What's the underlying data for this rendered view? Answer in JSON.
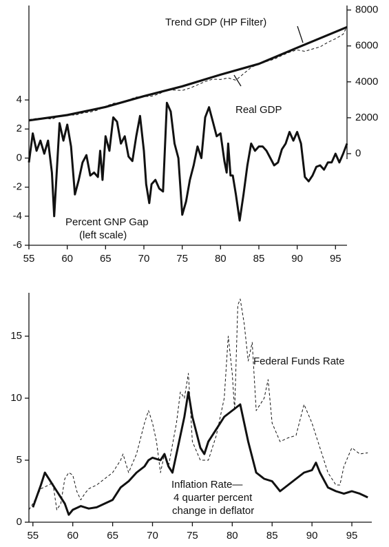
{
  "chart_data": [
    {
      "type": "line",
      "xlim": [
        55,
        96.5
      ],
      "xticks": [
        55,
        60,
        65,
        70,
        75,
        80,
        85,
        90,
        95
      ],
      "ylim": [
        -6,
        10.5
      ],
      "yticks": [
        -6,
        -4,
        -2,
        0,
        2,
        4
      ],
      "y2lim": [
        -5100,
        8250
      ],
      "y2ticks": [
        0,
        2000,
        4000,
        6000,
        8000
      ],
      "annotations": [
        "Trend GDP (HP Filter)",
        "Real GDP",
        "Percent GNP Gap",
        "(left scale)"
      ],
      "series": [
        {
          "color": "#111111",
          "style": "solid",
          "width": 3,
          "axis": "y",
          "x": [
            55,
            55.5,
            56,
            56.5,
            57,
            57.5,
            58,
            58.3,
            59,
            59.5,
            60,
            60.5,
            61,
            61.5,
            62,
            62.5,
            63,
            63.5,
            64,
            64.3,
            64.6,
            65,
            65.5,
            66,
            66.5,
            67,
            67.5,
            68,
            68.5,
            69,
            69.5,
            70,
            70.3,
            70.7,
            71,
            71.5,
            72,
            72.5,
            73,
            73.5,
            74,
            74.5,
            75,
            75.5,
            76,
            76.5,
            77,
            77.5,
            78,
            78.5,
            79,
            79.5,
            80,
            80.5,
            80.8,
            81,
            81.3,
            81.6,
            82,
            82.5,
            83,
            83.5,
            84,
            84.5,
            85,
            85.5,
            86,
            86.5,
            87,
            87.5,
            88,
            88.5,
            89,
            89.5,
            90,
            90.5,
            91,
            91.5,
            92,
            92.5,
            93,
            93.5,
            94,
            94.5,
            95,
            95.5,
            96,
            96.5
          ],
          "values": [
            -0.3,
            1.7,
            0.5,
            1.2,
            0.3,
            1.2,
            -1,
            -4,
            2.4,
            1.2,
            2.3,
            0.8,
            -2.5,
            -1.5,
            -0.3,
            0.2,
            -1.2,
            -1,
            -1.3,
            0.5,
            -1.5,
            1.5,
            0.5,
            2.8,
            2.5,
            1,
            1.5,
            0.1,
            -0.2,
            1.5,
            2.9,
            0.5,
            -1.8,
            -3.1,
            -1.8,
            -1.5,
            -2.1,
            -2.3,
            3.8,
            3.2,
            1,
            0,
            -3.9,
            -3,
            -1.5,
            -0.5,
            0.8,
            0,
            2.8,
            3.5,
            2.5,
            1.5,
            1.7,
            -0.2,
            -1,
            1,
            -1.2,
            -1.2,
            -2.5,
            -4.3,
            -2.5,
            -0.5,
            1,
            0.5,
            0.8,
            0.8,
            0.5,
            0,
            -0.5,
            -0.3,
            0.6,
            1,
            1.8,
            1.2,
            1.8,
            1,
            -1.3,
            -1.6,
            -1.2,
            -0.6,
            -0.5,
            -0.8,
            -0.3,
            -0.3,
            0.3,
            -0.3,
            0.3,
            1
          ]
        },
        {
          "color": "#111111",
          "style": "solid",
          "width": 3.2,
          "axis": "y2",
          "x": [
            55,
            60,
            65,
            70,
            75,
            80,
            85,
            90,
            96.5
          ],
          "values": [
            1850,
            2150,
            2600,
            3200,
            3750,
            4400,
            5000,
            5900,
            7050
          ]
        },
        {
          "color": "#111111",
          "style": "dashed",
          "width": 1,
          "axis": "y2",
          "x": [
            55,
            56,
            57,
            58,
            59,
            60,
            61,
            62,
            63,
            64,
            65,
            66,
            67,
            68,
            69,
            70,
            71,
            72,
            73,
            74,
            75,
            76,
            77,
            78,
            79,
            80,
            81,
            82,
            83,
            84,
            85,
            86,
            87,
            88,
            89,
            90,
            91,
            92,
            93,
            94,
            95,
            96,
            96.5
          ],
          "values": [
            1900,
            1960,
            1990,
            1920,
            2100,
            2180,
            2140,
            2260,
            2320,
            2430,
            2640,
            2800,
            2860,
            3000,
            3150,
            3180,
            3200,
            3330,
            3560,
            3540,
            3520,
            3650,
            3830,
            4020,
            4150,
            4130,
            4220,
            4090,
            4450,
            4800,
            5000,
            5130,
            5260,
            5470,
            5650,
            5780,
            5700,
            5830,
            5950,
            6200,
            6400,
            6650,
            7080
          ]
        }
      ]
    },
    {
      "type": "line",
      "xlim": [
        54.5,
        97.5
      ],
      "xticks": [
        55,
        60,
        65,
        70,
        75,
        80,
        85,
        90,
        95
      ],
      "ylim": [
        0,
        18.5
      ],
      "yticks": [
        0,
        5,
        10,
        15
      ],
      "annotations": [
        "Federal Funds Rate",
        "Inflation Rate—",
        "4 quarter percent",
        "change in deflator"
      ],
      "series": [
        {
          "color": "#111111",
          "style": "dashed",
          "width": 1,
          "x": [
            54.5,
            55,
            56,
            57,
            57.5,
            58,
            58.5,
            59,
            59.5,
            60,
            60.5,
            61,
            61.5,
            62,
            63,
            64,
            65,
            66,
            66.3,
            67,
            68,
            69,
            69.5,
            70,
            70.5,
            71,
            71.5,
            72,
            73,
            73.5,
            74,
            74.5,
            75,
            76,
            77,
            78,
            79,
            79.5,
            80,
            80.3,
            80.7,
            81,
            81.5,
            82,
            82.5,
            83,
            84,
            84.5,
            85,
            86,
            87,
            88,
            89,
            90,
            91,
            92,
            93,
            93.5,
            94,
            95,
            96,
            97
          ],
          "values": [
            1,
            1.5,
            2.7,
            3,
            3.2,
            1,
            1.5,
            3.5,
            4,
            3.8,
            2.5,
            1.8,
            2.3,
            2.7,
            3,
            3.5,
            4,
            5,
            5.5,
            4,
            5.5,
            8,
            9,
            8,
            6.5,
            4,
            5.5,
            4.5,
            8,
            10.5,
            10,
            12,
            6.5,
            5,
            5,
            7,
            10,
            15,
            12,
            9,
            17.5,
            18,
            16,
            13,
            14.5,
            9,
            10,
            11.5,
            8,
            6.5,
            6.8,
            7,
            9.5,
            8,
            6,
            4,
            3,
            3,
            4.5,
            6,
            5.5,
            5.6
          ]
        },
        {
          "color": "#111111",
          "style": "solid",
          "width": 3,
          "x": [
            55,
            56,
            56.5,
            57,
            58,
            58.5,
            59,
            59.5,
            60,
            61,
            62,
            63,
            64,
            65,
            66,
            67,
            68,
            69,
            69.5,
            70,
            71,
            71.5,
            72,
            72.5,
            73,
            74,
            74.5,
            75,
            76,
            76.5,
            77,
            78,
            79,
            80,
            81,
            82,
            83,
            84,
            85,
            86,
            87,
            88,
            89,
            90,
            90.5,
            91,
            92,
            93,
            94,
            95,
            96,
            97
          ],
          "values": [
            1.2,
            3,
            4,
            3.5,
            2.5,
            2,
            1.5,
            0.6,
            1,
            1.3,
            1.1,
            1.2,
            1.5,
            1.8,
            2.8,
            3.3,
            4,
            4.5,
            5,
            5.2,
            5,
            5.5,
            4.5,
            4,
            5.5,
            8.5,
            10.5,
            8.5,
            6,
            5.5,
            6.5,
            7.5,
            8.5,
            9,
            9.5,
            6.5,
            4,
            3.5,
            3.3,
            2.5,
            3,
            3.5,
            4,
            4.2,
            4.8,
            4,
            2.8,
            2.5,
            2.3,
            2.5,
            2.3,
            2
          ]
        }
      ]
    }
  ]
}
